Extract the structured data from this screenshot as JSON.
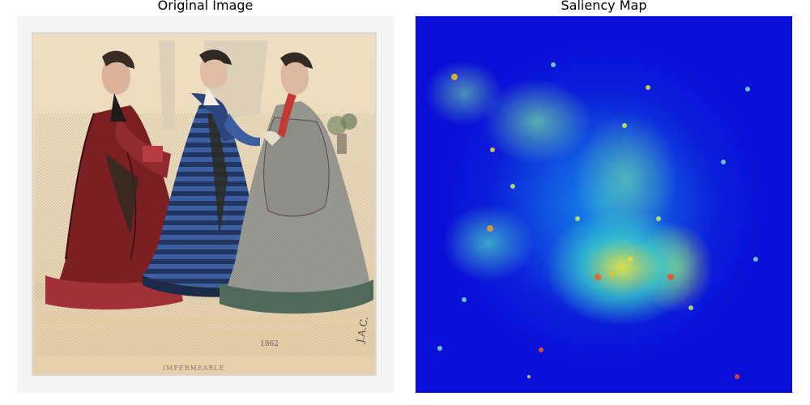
{
  "panels": {
    "left_title": "Original Image",
    "right_title": "Saliency Map"
  },
  "plate": {
    "year": "1862",
    "caption": "IMPERMEABLE",
    "signature": "J.A.C."
  },
  "colors": {
    "paper": "#ead6b6",
    "dress_left": "#7a1f22",
    "dress_middle": "#2f4a86",
    "dress_right": "#9a9c95",
    "saliency_low": "#0a0fd8",
    "saliency_mid": "#18b4e8",
    "saliency_high": "#f2f24a"
  }
}
